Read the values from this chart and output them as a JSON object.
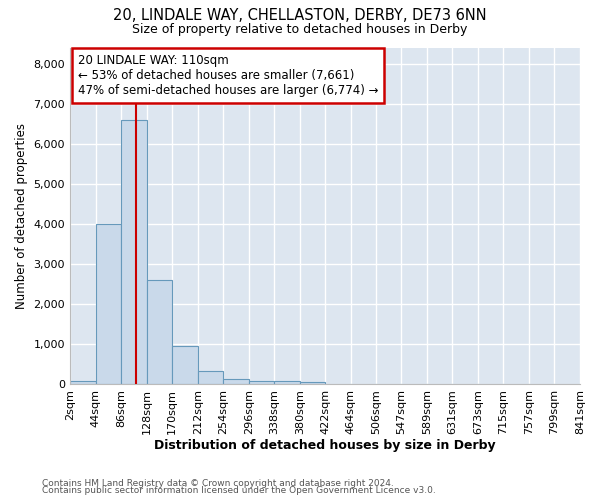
{
  "title1": "20, LINDALE WAY, CHELLASTON, DERBY, DE73 6NN",
  "title2": "Size of property relative to detached houses in Derby",
  "xlabel": "Distribution of detached houses by size in Derby",
  "ylabel": "Number of detached properties",
  "footer1": "Contains HM Land Registry data © Crown copyright and database right 2024.",
  "footer2": "Contains public sector information licensed under the Open Government Licence v3.0.",
  "annotation_line1": "20 LINDALE WAY: 110sqm",
  "annotation_line2": "← 53% of detached houses are smaller (7,661)",
  "annotation_line3": "47% of semi-detached houses are larger (6,774) →",
  "bar_color": "#c9d9ea",
  "bar_edge_color": "#6699bb",
  "plot_bg_color": "#dde6f0",
  "fig_bg_color": "#ffffff",
  "grid_color": "#ffffff",
  "red_line_x": 110,
  "red_line_color": "#cc0000",
  "bin_edges": [
    2,
    44,
    86,
    128,
    170,
    212,
    254,
    296,
    338,
    380,
    422,
    464,
    506,
    547,
    589,
    631,
    673,
    715,
    757,
    799,
    841
  ],
  "bin_labels": [
    "2sqm",
    "44sqm",
    "86sqm",
    "128sqm",
    "170sqm",
    "212sqm",
    "254sqm",
    "296sqm",
    "338sqm",
    "380sqm",
    "422sqm",
    "464sqm",
    "506sqm",
    "547sqm",
    "589sqm",
    "631sqm",
    "673sqm",
    "715sqm",
    "757sqm",
    "799sqm",
    "841sqm"
  ],
  "bar_heights": [
    70,
    4000,
    6600,
    2600,
    950,
    330,
    130,
    80,
    70,
    50,
    0,
    0,
    0,
    0,
    0,
    0,
    0,
    0,
    0,
    0
  ],
  "ylim": [
    0,
    8400
  ],
  "yticks": [
    0,
    1000,
    2000,
    3000,
    4000,
    5000,
    6000,
    7000,
    8000
  ]
}
